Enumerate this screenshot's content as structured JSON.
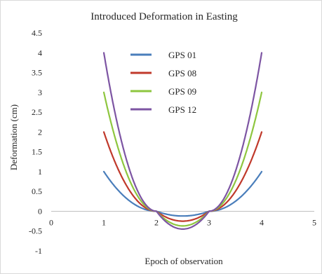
{
  "chart_data": {
    "type": "line",
    "title": "Introduced Deformation in Easting",
    "xlabel": "Epoch of observation",
    "ylabel": "Deformation (cm)",
    "xlim": [
      0,
      5
    ],
    "ylim": [
      -1,
      4.5
    ],
    "x_ticks": [
      "0",
      "1",
      "2",
      "3",
      "4",
      "5"
    ],
    "y_ticks": [
      "-1",
      "-0.5",
      "0",
      "0.5",
      "1",
      "1.5",
      "2",
      "2.5",
      "3",
      "3.5",
      "4",
      "4.5"
    ],
    "grid": false,
    "legend_position": "top-center",
    "x": [
      1,
      2,
      3,
      4
    ],
    "series": [
      {
        "name": "GPS 01",
        "color": "#4a7ebb",
        "values": [
          1,
          0,
          0,
          1
        ],
        "min": -0.12
      },
      {
        "name": "GPS 08",
        "color": "#c0392b",
        "values": [
          2,
          0,
          0,
          2
        ],
        "min": -0.25
      },
      {
        "name": "GPS 09",
        "color": "#8ec63f",
        "values": [
          3,
          0,
          0,
          3
        ],
        "min": -0.37
      },
      {
        "name": "GPS 12",
        "color": "#7d55a3",
        "values": [
          4,
          0,
          0,
          4
        ],
        "min": -0.45
      }
    ]
  }
}
